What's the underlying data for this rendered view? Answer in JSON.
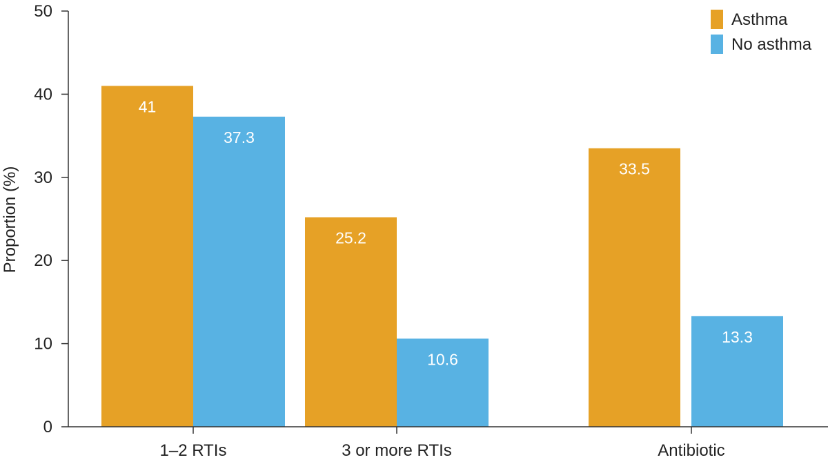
{
  "chart_data": {
    "type": "bar",
    "categories": [
      "1–2 RTIs",
      "3 or more RTIs",
      "Antibiotic"
    ],
    "series": [
      {
        "name": "Asthma",
        "values": [
          41,
          25.2,
          33.5
        ],
        "labels": [
          "41",
          "25.2",
          "33.5"
        ],
        "color": "#E6A126"
      },
      {
        "name": "No asthma",
        "values": [
          37.3,
          10.6,
          13.3
        ],
        "labels": [
          "37.3",
          "10.6",
          "13.3"
        ],
        "color": "#58B2E3"
      }
    ],
    "title": "",
    "xlabel": "",
    "ylabel": "Proportion (%)",
    "ylim": [
      0,
      50
    ],
    "yticks": [
      "0",
      "10",
      "20",
      "30",
      "40",
      "50"
    ],
    "legend_position": "top-right",
    "grid": false
  }
}
